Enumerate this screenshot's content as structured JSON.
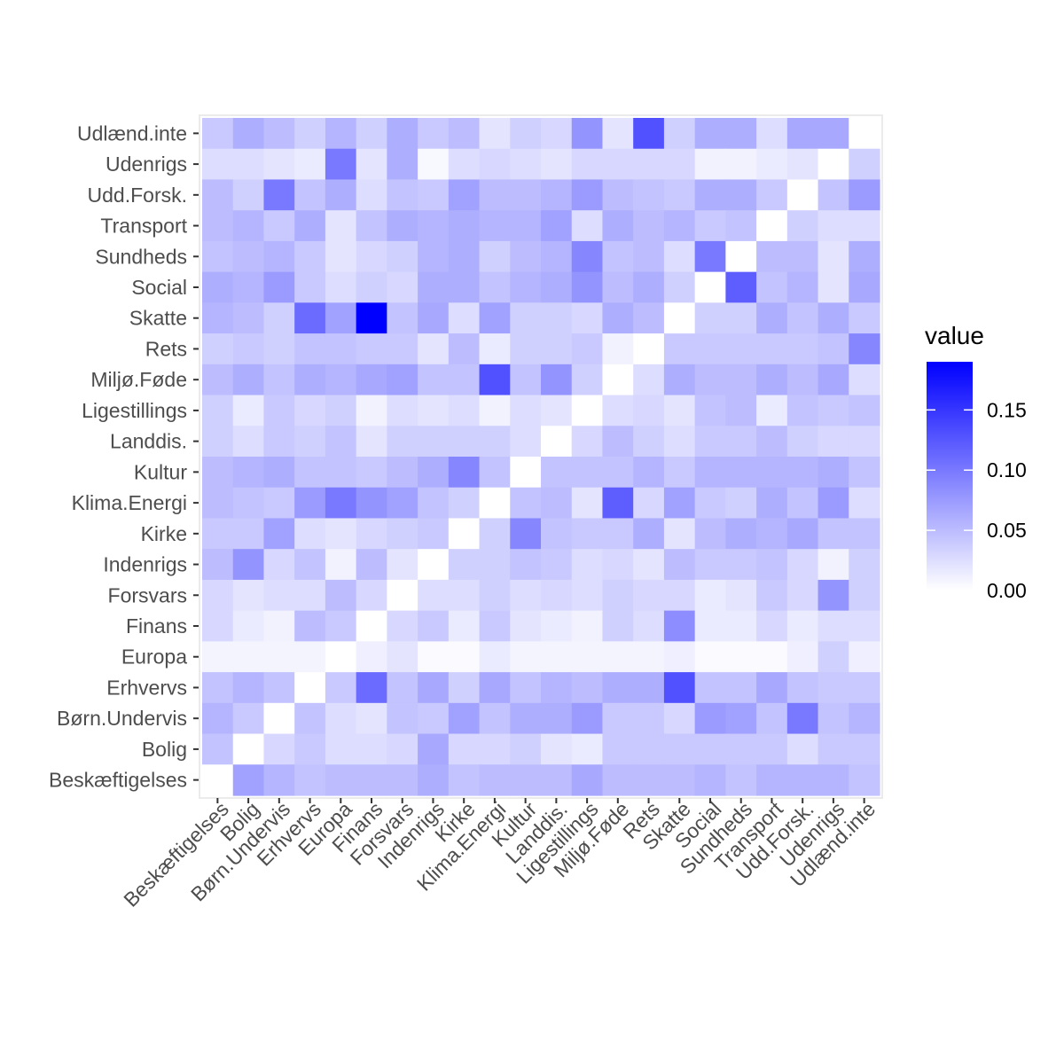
{
  "chart_data": {
    "type": "heatmap",
    "title": "",
    "xlabel": "",
    "ylabel": "",
    "categories": [
      "Beskæftigelses",
      "Bolig",
      "Børn.Undervis",
      "Erhvervs",
      "Europa",
      "Finans",
      "Forsvars",
      "Indenrigs",
      "Kirke",
      "Klima.Energi",
      "Kultur",
      "Landdis.",
      "Ligestillings",
      "Miljø.Føde",
      "Rets",
      "Skatte",
      "Social",
      "Sundheds",
      "Transport",
      "Udd.Forsk.",
      "Udenrigs",
      "Udlænd.inte"
    ],
    "legend": {
      "title": "value",
      "position": "right",
      "min": 0.0,
      "max": 0.19,
      "ticks": [
        0.0,
        0.05,
        0.1,
        0.15
      ],
      "tick_labels": [
        "0.00",
        "0.05",
        "0.10",
        "0.15"
      ],
      "low_color": "#ffffff",
      "high_color": "#0000ff"
    },
    "grid": true,
    "matrix_note_rows": "rows listed top-to-bottom: Udlænd.inte ... Beskæftigelses; columns left-to-right: Beskæftigelses ... Udlænd.inte",
    "rows": [
      {
        "name": "Udlænd.inte",
        "values": [
          0.04,
          0.06,
          0.05,
          0.035,
          0.055,
          0.035,
          0.06,
          0.04,
          0.05,
          0.02,
          0.035,
          0.03,
          0.08,
          0.02,
          0.13,
          0.035,
          0.06,
          0.06,
          0.025,
          0.065,
          0.065,
          0.0
        ]
      },
      {
        "name": "Udenrigs",
        "values": [
          0.025,
          0.025,
          0.02,
          0.015,
          0.1,
          0.02,
          0.06,
          0.005,
          0.025,
          0.03,
          0.025,
          0.02,
          0.03,
          0.03,
          0.03,
          0.03,
          0.01,
          0.01,
          0.015,
          0.02,
          0.0,
          0.035
        ]
      },
      {
        "name": "Udd.Forsk.",
        "values": [
          0.05,
          0.035,
          0.1,
          0.045,
          0.06,
          0.025,
          0.045,
          0.04,
          0.07,
          0.05,
          0.05,
          0.055,
          0.075,
          0.05,
          0.045,
          0.04,
          0.06,
          0.06,
          0.04,
          0.0,
          0.045,
          0.075
        ]
      },
      {
        "name": "Transport",
        "values": [
          0.05,
          0.055,
          0.04,
          0.06,
          0.02,
          0.045,
          0.06,
          0.055,
          0.06,
          0.055,
          0.055,
          0.07,
          0.025,
          0.06,
          0.05,
          0.055,
          0.04,
          0.045,
          0.0,
          0.035,
          0.025,
          0.025
        ]
      },
      {
        "name": "Sundheds",
        "values": [
          0.045,
          0.05,
          0.055,
          0.04,
          0.02,
          0.03,
          0.035,
          0.055,
          0.06,
          0.035,
          0.05,
          0.055,
          0.09,
          0.045,
          0.05,
          0.025,
          0.1,
          0.0,
          0.05,
          0.05,
          0.02,
          0.06
        ]
      },
      {
        "name": "Social",
        "values": [
          0.06,
          0.055,
          0.075,
          0.04,
          0.025,
          0.035,
          0.03,
          0.06,
          0.06,
          0.045,
          0.055,
          0.06,
          0.08,
          0.05,
          0.06,
          0.035,
          0.0,
          0.12,
          0.045,
          0.055,
          0.02,
          0.065
        ]
      },
      {
        "name": "Skatte",
        "values": [
          0.055,
          0.05,
          0.035,
          0.11,
          0.07,
          0.19,
          0.045,
          0.065,
          0.025,
          0.07,
          0.035,
          0.035,
          0.03,
          0.06,
          0.05,
          0.0,
          0.035,
          0.035,
          0.06,
          0.045,
          0.06,
          0.04
        ]
      },
      {
        "name": "Rets",
        "values": [
          0.035,
          0.04,
          0.035,
          0.045,
          0.045,
          0.04,
          0.04,
          0.02,
          0.05,
          0.015,
          0.035,
          0.035,
          0.04,
          0.01,
          0.0,
          0.04,
          0.04,
          0.04,
          0.04,
          0.04,
          0.045,
          0.09
        ]
      },
      {
        "name": "Miljø.Føde",
        "values": [
          0.05,
          0.06,
          0.045,
          0.06,
          0.055,
          0.065,
          0.07,
          0.045,
          0.045,
          0.13,
          0.045,
          0.08,
          0.035,
          0.0,
          0.025,
          0.06,
          0.05,
          0.05,
          0.06,
          0.05,
          0.065,
          0.025
        ]
      },
      {
        "name": "Ligestillings",
        "values": [
          0.035,
          0.015,
          0.04,
          0.03,
          0.035,
          0.01,
          0.025,
          0.02,
          0.025,
          0.01,
          0.025,
          0.02,
          0.0,
          0.025,
          0.03,
          0.02,
          0.045,
          0.05,
          0.015,
          0.045,
          0.04,
          0.045
        ]
      },
      {
        "name": "Landdis.",
        "values": [
          0.035,
          0.025,
          0.04,
          0.035,
          0.045,
          0.02,
          0.035,
          0.035,
          0.035,
          0.035,
          0.025,
          0.0,
          0.03,
          0.05,
          0.035,
          0.025,
          0.04,
          0.04,
          0.05,
          0.035,
          0.03,
          0.03
        ]
      },
      {
        "name": "Kultur",
        "values": [
          0.05,
          0.055,
          0.06,
          0.045,
          0.045,
          0.04,
          0.05,
          0.06,
          0.09,
          0.045,
          0.0,
          0.045,
          0.045,
          0.045,
          0.055,
          0.04,
          0.055,
          0.055,
          0.055,
          0.055,
          0.06,
          0.045
        ]
      },
      {
        "name": "Klima.Energi",
        "values": [
          0.05,
          0.045,
          0.04,
          0.075,
          0.1,
          0.08,
          0.07,
          0.045,
          0.035,
          0.0,
          0.045,
          0.05,
          0.02,
          0.12,
          0.03,
          0.07,
          0.04,
          0.035,
          0.06,
          0.045,
          0.075,
          0.025
        ]
      },
      {
        "name": "Kirke",
        "values": [
          0.04,
          0.04,
          0.07,
          0.025,
          0.02,
          0.03,
          0.035,
          0.04,
          0.0,
          0.035,
          0.09,
          0.045,
          0.04,
          0.04,
          0.06,
          0.02,
          0.05,
          0.06,
          0.055,
          0.065,
          0.045,
          0.045
        ]
      },
      {
        "name": "Indenrigs",
        "values": [
          0.05,
          0.08,
          0.03,
          0.045,
          0.01,
          0.05,
          0.02,
          0.0,
          0.035,
          0.035,
          0.045,
          0.04,
          0.025,
          0.03,
          0.02,
          0.05,
          0.04,
          0.04,
          0.045,
          0.03,
          0.01,
          0.035
        ]
      },
      {
        "name": "Forsvars",
        "values": [
          0.03,
          0.02,
          0.025,
          0.025,
          0.05,
          0.03,
          0.0,
          0.025,
          0.025,
          0.035,
          0.025,
          0.03,
          0.025,
          0.035,
          0.03,
          0.03,
          0.015,
          0.02,
          0.04,
          0.03,
          0.08,
          0.035
        ]
      },
      {
        "name": "Finans",
        "values": [
          0.03,
          0.015,
          0.01,
          0.05,
          0.04,
          0.0,
          0.03,
          0.04,
          0.015,
          0.04,
          0.02,
          0.015,
          0.01,
          0.035,
          0.025,
          0.085,
          0.015,
          0.015,
          0.03,
          0.015,
          0.025,
          0.025
        ]
      },
      {
        "name": "Europa",
        "values": [
          0.008,
          0.008,
          0.008,
          0.008,
          0.0,
          0.012,
          0.02,
          0.004,
          0.004,
          0.015,
          0.008,
          0.008,
          0.008,
          0.008,
          0.008,
          0.012,
          0.004,
          0.004,
          0.004,
          0.012,
          0.035,
          0.012
        ]
      },
      {
        "name": "Erhvervs",
        "values": [
          0.045,
          0.055,
          0.045,
          0.0,
          0.04,
          0.11,
          0.045,
          0.065,
          0.035,
          0.065,
          0.045,
          0.055,
          0.05,
          0.06,
          0.06,
          0.13,
          0.045,
          0.045,
          0.065,
          0.045,
          0.04,
          0.04
        ]
      },
      {
        "name": "Børn.Undervis",
        "values": [
          0.055,
          0.04,
          0.0,
          0.045,
          0.025,
          0.02,
          0.045,
          0.04,
          0.07,
          0.045,
          0.06,
          0.06,
          0.075,
          0.04,
          0.04,
          0.03,
          0.075,
          0.07,
          0.045,
          0.1,
          0.045,
          0.055
        ]
      },
      {
        "name": "Bolig",
        "values": [
          0.045,
          0.0,
          0.03,
          0.04,
          0.025,
          0.025,
          0.03,
          0.065,
          0.03,
          0.03,
          0.035,
          0.02,
          0.015,
          0.04,
          0.04,
          0.04,
          0.04,
          0.04,
          0.04,
          0.025,
          0.04,
          0.04
        ]
      },
      {
        "name": "Beskæftigelses",
        "values": [
          0.0,
          0.07,
          0.055,
          0.045,
          0.05,
          0.05,
          0.05,
          0.06,
          0.045,
          0.05,
          0.05,
          0.05,
          0.065,
          0.05,
          0.05,
          0.05,
          0.055,
          0.045,
          0.055,
          0.055,
          0.055,
          0.045
        ]
      }
    ]
  }
}
